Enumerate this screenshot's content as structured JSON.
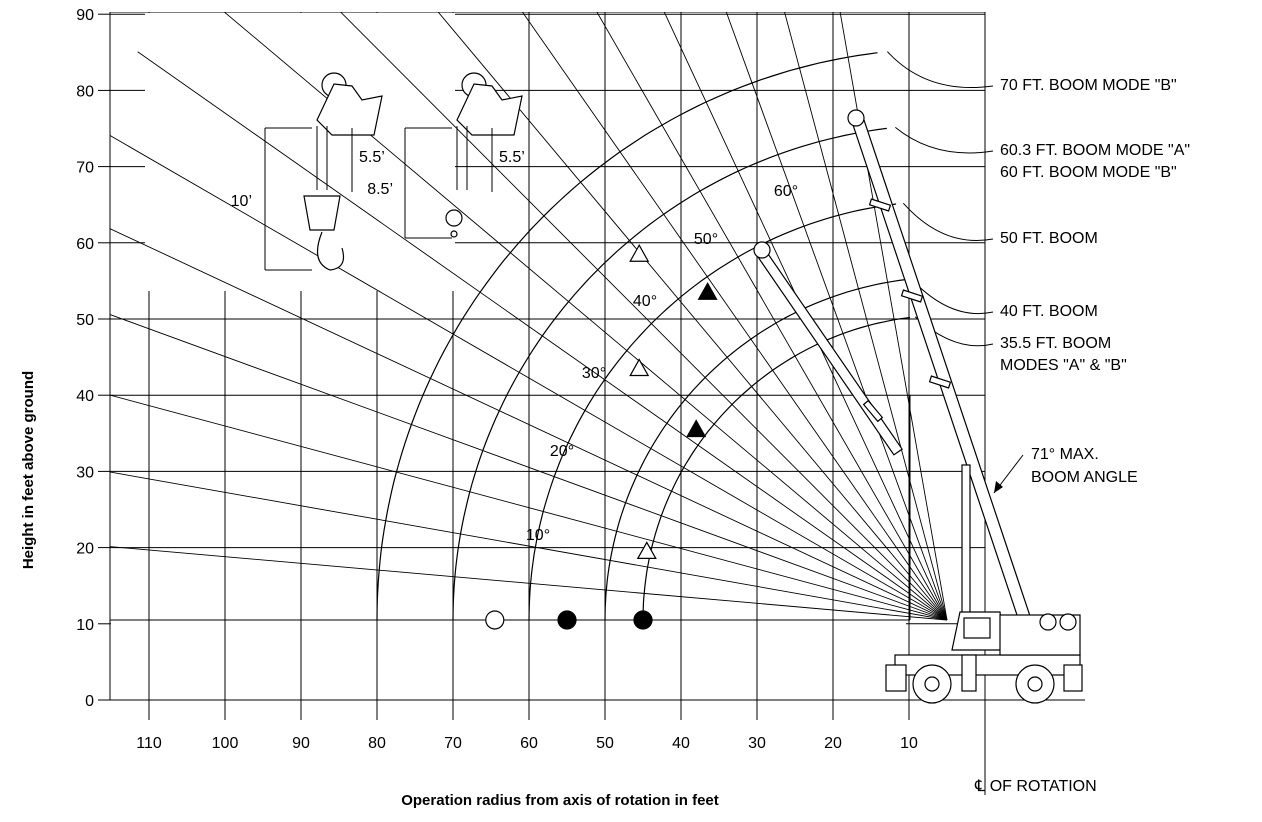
{
  "chart_data": {
    "type": "range-diagram",
    "title": "",
    "xlabel": "Operation radius from axis of rotation in feet",
    "ylabel": "Height in feet above ground",
    "x_reversed": true,
    "xlim": [
      -4,
      113
    ],
    "ylim": [
      -3,
      90
    ],
    "x_ticks": [
      110,
      100,
      90,
      80,
      70,
      60,
      50,
      40,
      30,
      20,
      10
    ],
    "y_ticks": [
      0,
      10,
      20,
      30,
      40,
      50,
      60,
      70,
      80,
      90
    ],
    "grid": true,
    "pivot": {
      "x": 5,
      "y": 10.5
    },
    "booms": [
      {
        "label": "70 FT. BOOM MODE \"B\"",
        "radius": 75
      },
      {
        "label": "60.3 FT. BOOM MODE \"A\"",
        "radius": 65
      },
      {
        "label": "60 FT. BOOM MODE \"B\"",
        "radius": 65
      },
      {
        "label": "50 FT. BOOM",
        "radius": 55
      },
      {
        "label": "40 FT. BOOM",
        "radius": 45
      },
      {
        "label": "35.5 FT. BOOM",
        "radius": 40
      },
      {
        "label": "MODES \"A\" & \"B\"",
        "radius": 40
      }
    ],
    "angle_labels": [
      {
        "label": "10°",
        "deg": 10
      },
      {
        "label": "20°",
        "deg": 20
      },
      {
        "label": "30°",
        "deg": 30
      },
      {
        "label": "40°",
        "deg": 40
      },
      {
        "label": "50°",
        "deg": 50
      },
      {
        "label": "60°",
        "deg": 60
      }
    ],
    "markers": [
      {
        "shape": "circle-open",
        "x": 64.5,
        "y": 10.5
      },
      {
        "shape": "circle-filled",
        "x": 55,
        "y": 10.5
      },
      {
        "shape": "circle-filled",
        "x": 45,
        "y": 10.5
      },
      {
        "shape": "triangle-open",
        "x": 44.5,
        "y": 19.5
      },
      {
        "shape": "triangle-open",
        "x": 45.5,
        "y": 43.5
      },
      {
        "shape": "triangle-open",
        "x": 45.5,
        "y": 58.5
      },
      {
        "shape": "triangle-filled",
        "x": 38,
        "y": 35.5
      },
      {
        "shape": "triangle-filled",
        "x": 36.5,
        "y": 53.5
      }
    ],
    "max_angle_label": [
      "71° MAX.",
      "BOOM ANGLE"
    ],
    "rotation_label": "℄ OF ROTATION",
    "hook_dims": [
      "10’",
      "5.5’",
      "8.5’",
      "5.5’"
    ]
  }
}
